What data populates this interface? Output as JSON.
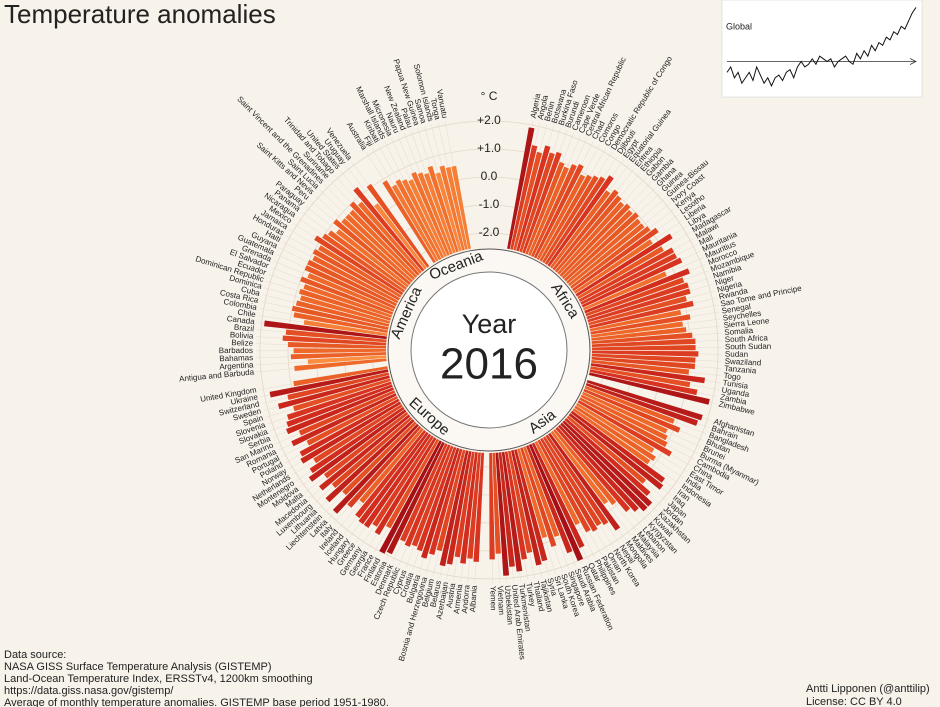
{
  "chart_data": {
    "type": "radial_bar",
    "title": "Temperature anomalies",
    "y_axis_label": "° C",
    "ylim": [
      -2.5,
      2.0
    ],
    "yticks": [
      {
        "value": 2,
        "label": "+2.0"
      },
      {
        "value": 1,
        "label": "+1.0"
      },
      {
        "value": 0,
        "label": "0.0"
      },
      {
        "value": -1,
        "label": "-1.0"
      },
      {
        "value": -2,
        "label": "-2.0"
      }
    ],
    "grid": true,
    "colors": [
      "#fff7d0",
      "#fff0b0",
      "#ffe39a",
      "#fecf80",
      "#fdb462",
      "#fb8d3f",
      "#ec6327",
      "#d7301f",
      "#a50f15"
    ],
    "center_label": [
      "Year",
      "2016"
    ],
    "groups": [
      {
        "name": "Africa",
        "categories": [
          "Algeria",
          "Angola",
          "Benin",
          "Botswana",
          "Burkina Faso",
          "Burundi",
          "Cameroon",
          "Cape Verde",
          "Central African Republic",
          "Chad",
          "Comoros",
          "Congo",
          "Democratic Republic of Congo",
          "Djibouti",
          "Egypt",
          "Equatorial Guinea",
          "Eritrea",
          "Ethiopia",
          "Gabon",
          "Gambia",
          "Ghana",
          "Guinea",
          "Guinea-Bissau",
          "Ivory Coast",
          "Kenya",
          "Lesotho",
          "Liberia",
          "Libya",
          "Madagascar",
          "Malawi",
          "Mali",
          "Mauritania",
          "Mauritius",
          "Morocco",
          "Mozambique",
          "Namibia",
          "Niger",
          "Nigeria",
          "Rwanda",
          "Sao Tome and Principe",
          "Senegal",
          "Seychelles",
          "Sierra Leone",
          "Somalia",
          "South Africa",
          "South Sudan",
          "Sudan",
          "Swaziland",
          "Tanzania",
          "Togo",
          "Tunisia",
          "Uganda",
          "Zambia",
          "Zimbabwe"
        ],
        "values": [
          1.9,
          1.3,
          1.1,
          1.4,
          1.2,
          1.3,
          1.0,
          0.9,
          1.1,
          1.2,
          0.9,
          1.0,
          1.1,
          1.2,
          1.4,
          0.9,
          1.1,
          1.0,
          0.9,
          1.0,
          0.9,
          1.0,
          0.9,
          0.9,
          1.0,
          1.2,
          0.8,
          1.5,
          1.0,
          1.3,
          1.3,
          1.4,
          0.7,
          1.5,
          1.2,
          1.3,
          1.3,
          1.1,
          1.3,
          0.8,
          1.1,
          0.8,
          0.9,
          1.1,
          1.2,
          1.2,
          1.3,
          1.2,
          1.2,
          1.0,
          1.6,
          1.1,
          1.4,
          1.9
        ]
      },
      {
        "name": "Asia",
        "categories": [
          "Afghanistan",
          "Bahrain",
          "Bangladesh",
          "Bhutan",
          "Brunei",
          "Burma (Myanmar)",
          "Cambodia",
          "China",
          "East Timor",
          "India",
          "Indonesia",
          "Iran",
          "Iraq",
          "Japan",
          "Jordan",
          "Kazakhstan",
          "Kuwait",
          "Kyrgyzstan",
          "Lebanon",
          "Malaysia",
          "Maldives",
          "Mongolia",
          "Nepal",
          "North Korea",
          "Oman",
          "Pakistan",
          "Philippines",
          "Qatar",
          "Russian Federation",
          "Saudi Arabia",
          "Singapore",
          "South Korea",
          "Sri Lanka",
          "Syria",
          "Tajikistan",
          "Thailand",
          "Turkey",
          "Turkmenistan",
          "United Arab Emirates",
          "Uzbekistan",
          "Vietnam",
          "Yemen"
        ],
        "values": [
          1.8,
          1.7,
          0.9,
          1.2,
          0.8,
          0.9,
          1.0,
          1.3,
          0.7,
          0.9,
          0.8,
          1.6,
          1.7,
          1.1,
          1.5,
          1.8,
          1.8,
          1.6,
          1.4,
          0.9,
          0.7,
          1.7,
          1.3,
          1.2,
          1.3,
          1.2,
          0.8,
          1.6,
          2.0,
          1.6,
          0.9,
          1.2,
          0.8,
          1.6,
          1.7,
          1.2,
          1.4,
          1.8,
          1.6,
          1.9,
          1.1,
          1.3
        ]
      },
      {
        "name": "Europe",
        "categories": [
          "Albania",
          "Andorra",
          "Armenia",
          "Austria",
          "Azerbaijan",
          "Belarus",
          "Belgium",
          "Bosnia and Herzegovina",
          "Bulgaria",
          "Croatia",
          "Cyprus",
          "Czech Republic",
          "Denmark",
          "Estonia",
          "Finland",
          "France",
          "Georgia",
          "Germany",
          "Greece",
          "Hungary",
          "Iceland",
          "Ireland",
          "Italy",
          "Latvia",
          "Liechtenstein",
          "Lithuania",
          "Luxembourg",
          "Macedonia",
          "Malta",
          "Moldova",
          "Montenegro",
          "Netherlands",
          "Norway",
          "Poland",
          "Portugal",
          "Romania",
          "San Marino",
          "Serbia",
          "Slovakia",
          "Slovenia",
          "Spain",
          "Sweden",
          "Switzerland",
          "Ukraine",
          "United Kingdom"
        ],
        "values": [
          1.4,
          1.3,
          1.5,
          1.3,
          1.6,
          1.7,
          1.2,
          1.4,
          1.6,
          1.4,
          1.3,
          1.4,
          1.3,
          1.9,
          2.0,
          1.1,
          1.5,
          1.3,
          1.5,
          1.5,
          1.4,
          0.9,
          1.3,
          1.8,
          1.1,
          1.7,
          1.2,
          1.6,
          1.2,
          1.7,
          1.5,
          1.2,
          1.6,
          1.5,
          1.1,
          1.6,
          1.2,
          1.6,
          1.5,
          1.4,
          1.1,
          1.6,
          1.2,
          1.8,
          0.9
        ]
      },
      {
        "name": "America",
        "categories": [
          "Antigua and Barbuda",
          "Argentina",
          "Bahamas",
          "Barbados",
          "Belize",
          "Bolivia",
          "Brazil",
          "Canada",
          "Chile",
          "Colombia",
          "Costa Rica",
          "Cuba",
          "Dominica",
          "Dominican Republic",
          "Ecuador",
          "El Salvador",
          "Grenada",
          "Guatemala",
          "Guyana",
          "Haiti",
          "Honduras",
          "Jamaica",
          "Mexico",
          "Nicaragua",
          "Panama",
          "Paraguay",
          "Peru",
          "Saint Kitts and Nevis",
          "Saint Lucia",
          "Saint Vincent and the Grenadines",
          "Suriname",
          "Trinidad and Tobago",
          "United States",
          "Uruguay",
          "Venezuela"
        ],
        "values": [
          0.8,
          0.3,
          0.9,
          0.8,
          1.0,
          1.2,
          1.1,
          1.9,
          0.5,
          0.9,
          1.0,
          0.9,
          0.8,
          0.9,
          0.8,
          1.0,
          0.8,
          1.0,
          1.0,
          0.9,
          1.0,
          0.9,
          1.2,
          1.0,
          0.9,
          0.7,
          1.0,
          0.8,
          0.8,
          0.8,
          1.0,
          0.8,
          1.3,
          0.4,
          1.1
        ]
      },
      {
        "name": "Oceania",
        "categories": [
          "Australia",
          "Fiji",
          "Kiribati",
          "Marshall Islands",
          "Micronesia",
          "Nauru",
          "New Zealand",
          "Palau",
          "Papua New Guinea",
          "Samoa",
          "Solomon Islands",
          "Tonga",
          "Vanuatu"
        ],
        "values": [
          0.9,
          0.6,
          0.7,
          0.6,
          0.5,
          0.7,
          0.6,
          0.5,
          0.7,
          0.4,
          0.6,
          0.5,
          0.5
        ]
      }
    ],
    "inset": {
      "type": "line",
      "title": "Global",
      "ylim": [
        -0.6,
        1.1
      ],
      "values": [
        -0.2,
        -0.1,
        -0.3,
        -0.2,
        -0.4,
        -0.3,
        -0.2,
        -0.35,
        -0.1,
        -0.25,
        -0.4,
        -0.3,
        -0.45,
        -0.3,
        -0.25,
        -0.35,
        -0.2,
        -0.15,
        -0.3,
        -0.1,
        0.0,
        -0.1,
        -0.05,
        0.05,
        -0.05,
        0.1,
        0.05,
        0.0,
        0.05,
        -0.1,
        0.0,
        0.05,
        0.1,
        0.0,
        -0.05,
        0.15,
        0.05,
        0.2,
        0.1,
        0.3,
        0.2,
        0.35,
        0.3,
        0.45,
        0.4,
        0.55,
        0.5,
        0.65,
        0.6,
        0.75,
        0.9,
        1.0
      ]
    },
    "notes": [
      "Data source:",
      "NASA GISS Surface Temperature Analysis (GISTEMP)",
      "Land-Ocean Temperature Index, ERSSTv4, 1200km smoothing",
      "https://data.giss.nasa.gov/gistemp/",
      "Average of monthly temperature anomalies. GISTEMP base period 1951-1980."
    ],
    "credits": [
      "Antti Lipponen (@anttilip)",
      "License: CC BY 4.0"
    ]
  }
}
